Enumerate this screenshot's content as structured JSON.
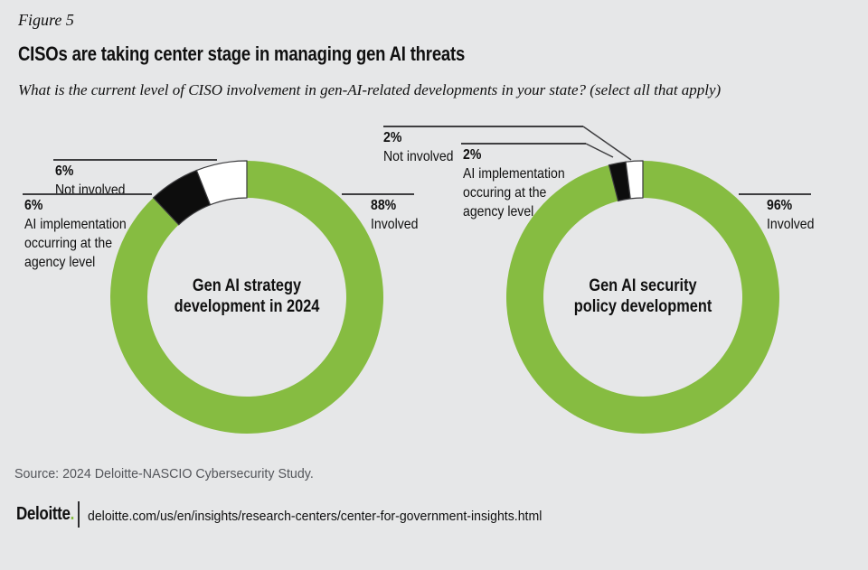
{
  "figure": {
    "label": "Figure 5",
    "title": "CISOs are taking center stage in managing gen AI threats",
    "question": "What is the current level of CISO involvement in gen-AI-related developments in your state? (select all that apply)"
  },
  "charts": [
    {
      "center_label_line1": "Gen AI strategy",
      "center_label_line2": "development in 2024",
      "annotations": {
        "not_involved": {
          "pct": "6%",
          "label": "Not involved"
        },
        "agency": {
          "pct": "6%",
          "line1": "AI implementation",
          "line2": "occurring at the",
          "line3": "agency level"
        },
        "involved": {
          "pct": "88%",
          "label": "Involved"
        }
      }
    },
    {
      "center_label_line1": "Gen AI security",
      "center_label_line2": "policy development",
      "annotations": {
        "not_involved": {
          "pct": "2%",
          "label": "Not involved"
        },
        "agency": {
          "pct": "2%",
          "line1": "AI implementation",
          "line2": "occuring at the",
          "line3": "agency level"
        },
        "involved": {
          "pct": "96%",
          "label": "Involved"
        }
      }
    }
  ],
  "chart_data": [
    {
      "type": "pie",
      "subtype": "donut",
      "title": "Gen AI strategy development in 2024",
      "units": "%",
      "direction": "clockwise",
      "start_angle_deg": 0,
      "inner_radius_ratio": 0.73,
      "slices": [
        {
          "name": "involved",
          "label": "Involved",
          "value": 88,
          "color": "#86BC41",
          "outlined": false
        },
        {
          "name": "agency-level",
          "label": "AI implementation occurring at the agency level",
          "value": 6,
          "color": "#0D0D0D",
          "outlined": true
        },
        {
          "name": "not-involved",
          "label": "Not involved",
          "value": 6,
          "color": "#FFFFFF",
          "outlined": true
        }
      ]
    },
    {
      "type": "pie",
      "subtype": "donut",
      "title": "Gen AI security policy development",
      "units": "%",
      "direction": "clockwise",
      "start_angle_deg": 0,
      "inner_radius_ratio": 0.73,
      "slices": [
        {
          "name": "involved",
          "label": "Involved",
          "value": 96,
          "color": "#86BC41",
          "outlined": false
        },
        {
          "name": "agency-level",
          "label": "AI implementation occuring at the agency level",
          "value": 2,
          "color": "#0D0D0D",
          "outlined": true
        },
        {
          "name": "not-involved",
          "label": "Not involved",
          "value": 2,
          "color": "#FFFFFF",
          "outlined": true
        }
      ]
    }
  ],
  "footer": {
    "source": "Source: 2024 Deloitte-NASCIO Cybersecurity Study.",
    "logo_text": "Deloitte",
    "logo_dot": ".",
    "url": "deloitte.com/us/en/insights/research-centers/center-for-government-insights.html"
  },
  "colors": {
    "background": "#E6E7E8",
    "green": "#86BC41",
    "wedge_black": "#0D0D0D",
    "wedge_white": "#FFFFFF",
    "leader_line": "#3E3E40",
    "source_text": "#54565B",
    "text": "#101010"
  }
}
